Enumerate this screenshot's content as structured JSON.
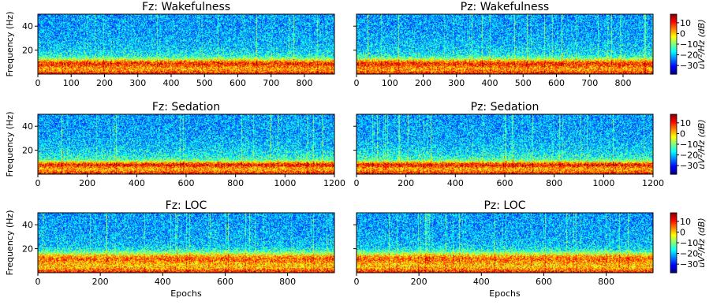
{
  "chart_data": [
    {
      "type": "heatmap",
      "title": "Fz: Wakefulness",
      "xlabel": "",
      "ylabel": "Frequency (Hz)",
      "xlim": [
        0,
        890
      ],
      "ylim": [
        0,
        50
      ],
      "xticks": [
        0,
        100,
        200,
        300,
        400,
        500,
        600,
        700,
        800
      ],
      "yticks": [
        20,
        40
      ],
      "band": {
        "peak_hz": 9,
        "width_hz": 3.5
      }
    },
    {
      "type": "heatmap",
      "title": "Pz: Wakefulness",
      "xlabel": "",
      "ylabel": "",
      "xlim": [
        0,
        890
      ],
      "ylim": [
        0,
        50
      ],
      "xticks": [
        0,
        100,
        200,
        300,
        400,
        500,
        600,
        700,
        800
      ],
      "yticks": [
        20,
        40
      ],
      "band": {
        "peak_hz": 9,
        "width_hz": 3.5
      }
    },
    {
      "type": "heatmap",
      "title": "Fz: Sedation",
      "xlabel": "",
      "ylabel": "Frequency (Hz)",
      "xlim": [
        0,
        1200
      ],
      "ylim": [
        0,
        50
      ],
      "xticks": [
        0,
        200,
        400,
        600,
        800,
        1000,
        1200
      ],
      "yticks": [
        20,
        40
      ],
      "band": {
        "peak_hz": 8,
        "width_hz": 2.5
      }
    },
    {
      "type": "heatmap",
      "title": "Pz: Sedation",
      "xlabel": "",
      "ylabel": "",
      "xlim": [
        0,
        1200
      ],
      "ylim": [
        0,
        50
      ],
      "xticks": [
        0,
        200,
        400,
        600,
        800,
        1000,
        1200
      ],
      "yticks": [
        20,
        40
      ],
      "band": {
        "peak_hz": 8,
        "width_hz": 2.5
      }
    },
    {
      "type": "heatmap",
      "title": "Fz: LOC",
      "xlabel": "Epochs",
      "ylabel": "Frequency (Hz)",
      "xlim": [
        0,
        950
      ],
      "ylim": [
        0,
        50
      ],
      "xticks": [
        0,
        200,
        400,
        600,
        800
      ],
      "yticks": [
        20,
        40
      ],
      "band": {
        "peak_hz": 12,
        "width_hz": 5
      }
    },
    {
      "type": "heatmap",
      "title": "Pz: LOC",
      "xlabel": "Epochs",
      "ylabel": "",
      "xlim": [
        0,
        950
      ],
      "ylim": [
        0,
        50
      ],
      "xticks": [
        0,
        200,
        400,
        600,
        800
      ],
      "yticks": [
        20,
        40
      ],
      "band": {
        "peak_hz": 12,
        "width_hz": 5
      }
    }
  ],
  "colorbar": {
    "label": "uV²/Hz (dB)",
    "range": [
      -38,
      18
    ],
    "ticks": [
      10,
      0,
      -10,
      -20,
      -30
    ],
    "tick_labels": [
      "10",
      "0",
      "−10",
      "−20",
      "−30"
    ],
    "colormap": "jet"
  }
}
